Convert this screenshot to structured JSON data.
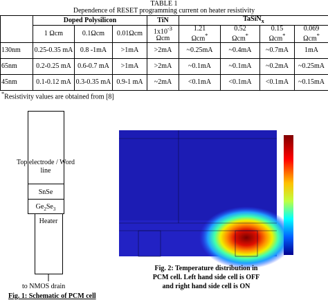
{
  "table": {
    "label": "TABLE 1",
    "title": "Dependence of RESET programming current on heater resistivity",
    "groups": [
      {
        "text": "Doped Polysilicon"
      },
      {
        "text": "TiN"
      },
      {
        "text": "TaSiN",
        "sub": "x"
      }
    ],
    "resistivity": [
      {
        "text": "1 Ωcm"
      },
      {
        "text": "0.1Ωcm"
      },
      {
        "text": "0.01Ωcm"
      },
      {
        "text": "1x10",
        "sup": "-3",
        "unit": "Ωcm"
      },
      {
        "text": "1.21",
        "unit": "Ωcm",
        "mark": "*"
      },
      {
        "text": "0.52",
        "unit": "Ωcm",
        "mark": "*"
      },
      {
        "text": "0.15",
        "unit": "Ωcm",
        "mark": "*"
      },
      {
        "text": "0.069",
        "unit": "Ωcm",
        "mark": "*"
      }
    ],
    "rows": [
      [
        "130nm",
        "0.25-0.35 mA",
        "0.8 -1mA",
        ">1mA",
        ">2mA",
        "~0.25mA",
        "~0.4mA",
        "~0.7mA",
        "1mA"
      ],
      [
        "65nm",
        "0.2-0.25 mA",
        "0.6-0.7 mA",
        ">1mA",
        ">2mA",
        "~0.1mA",
        "~0.1mA",
        "~0.2mA",
        "~0.25mA"
      ],
      [
        "45nm",
        "0.1-0.12 mA",
        "0.3-0.35 mA",
        "0.9-1 mA",
        "~2mA",
        "<0.1mA",
        "<0.1mA",
        "<0.1mA",
        "~0.15mA"
      ]
    ],
    "footnote": {
      "mark": "*",
      "text": "Resistivity values are obtained from [8]"
    }
  },
  "figure1": {
    "top": "Top electrode / Word line",
    "snse": "SnSe",
    "gese": [
      "Ge",
      "2",
      "Se",
      "3"
    ],
    "heater": "Heater",
    "drain": "to NMOS drain",
    "caption": "Fig. 1: Schematic of PCM cell"
  },
  "figure2": {
    "caption": [
      "Fig. 2: Temperature distribution in",
      "PCM cell. Left hand side cell is OFF",
      "and right hand side cell is ON"
    ]
  }
}
